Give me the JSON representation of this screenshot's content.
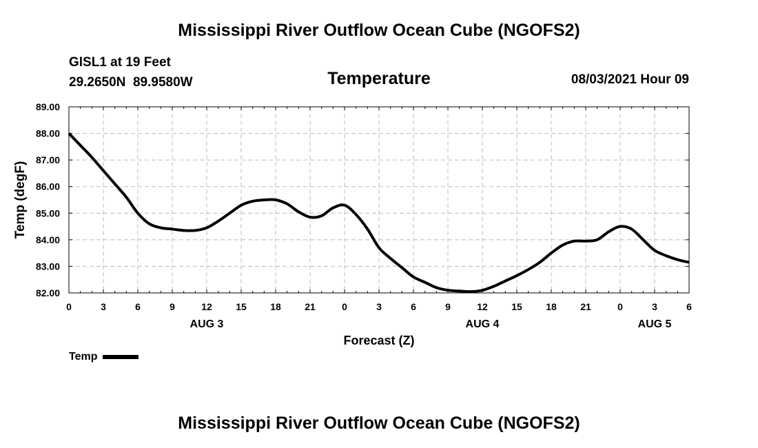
{
  "header": {
    "main_title": "Mississippi River Outflow Ocean Cube (NGOFS2)",
    "station_name": "GISL1 at 19 Feet",
    "station_coords": "29.2650N  89.9580W",
    "subtitle": "Temperature",
    "datetime": "08/03/2021 Hour 09"
  },
  "footer": {
    "title": "Mississippi River Outflow Ocean Cube (NGOFS2)"
  },
  "legend": {
    "label": "Temp"
  },
  "chart_data": {
    "type": "line",
    "title": "Temperature",
    "xlabel": "Forecast (Z)",
    "ylabel": "Temp (degF)",
    "xlim": [
      0,
      54
    ],
    "ylim": [
      82.0,
      89.0
    ],
    "grid": true,
    "x_ticks": [
      0,
      3,
      6,
      9,
      12,
      15,
      18,
      21,
      24,
      27,
      30,
      33,
      36,
      39,
      42,
      45,
      48,
      51,
      54
    ],
    "x_tick_labels": [
      "0",
      "3",
      "6",
      "9",
      "12",
      "15",
      "18",
      "21",
      "0",
      "3",
      "6",
      "9",
      "12",
      "15",
      "18",
      "21",
      "0",
      "3",
      "6"
    ],
    "y_ticks": [
      82,
      83,
      84,
      85,
      86,
      87,
      88,
      89
    ],
    "y_tick_labels": [
      "82.00",
      "83.00",
      "84.00",
      "85.00",
      "86.00",
      "87.00",
      "88.00",
      "89.00"
    ],
    "date_labels": [
      {
        "x": 12,
        "label": "AUG 3"
      },
      {
        "x": 36,
        "label": "AUG 4"
      },
      {
        "x": 51,
        "label": "AUG 5"
      }
    ],
    "series": [
      {
        "name": "Temp",
        "color": "#000000",
        "x": [
          0,
          1,
          2,
          3,
          4,
          5,
          6,
          7,
          8,
          9,
          10,
          11,
          12,
          13,
          14,
          15,
          16,
          17,
          18,
          19,
          20,
          21,
          22,
          23,
          24,
          25,
          26,
          27,
          28,
          29,
          30,
          31,
          32,
          33,
          34,
          35,
          36,
          37,
          38,
          39,
          40,
          41,
          42,
          43,
          44,
          45,
          46,
          47,
          48,
          49,
          50,
          51,
          52,
          53,
          54
        ],
        "values": [
          88.0,
          87.55,
          87.1,
          86.6,
          86.1,
          85.6,
          85.0,
          84.6,
          84.45,
          84.4,
          84.35,
          84.35,
          84.45,
          84.7,
          85.0,
          85.3,
          85.45,
          85.5,
          85.5,
          85.35,
          85.05,
          84.85,
          84.9,
          85.2,
          85.3,
          84.95,
          84.4,
          83.7,
          83.3,
          82.95,
          82.6,
          82.4,
          82.2,
          82.1,
          82.07,
          82.05,
          82.1,
          82.25,
          82.45,
          82.65,
          82.88,
          83.15,
          83.5,
          83.8,
          83.95,
          83.95,
          84.0,
          84.3,
          84.5,
          84.4,
          84.0,
          83.6,
          83.4,
          83.25,
          83.15
        ]
      }
    ]
  }
}
